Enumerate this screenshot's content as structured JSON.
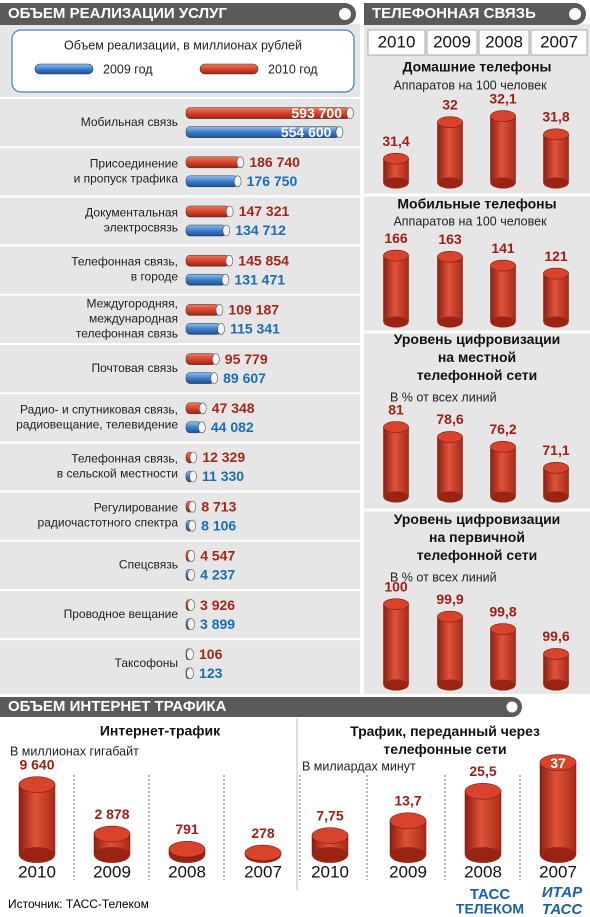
{
  "header_left": "ОБЪЕМ РЕАЛИЗАЦИИ УСЛУГ",
  "header_right": "ТЕЛЕФОННАЯ СВЯЗЬ",
  "header_bottom": "ОБЪЕМ ИНТЕРНЕТ ТРАФИКА",
  "telephone_years": [
    "2010",
    "2009",
    "2008",
    "2007"
  ],
  "source": "Источник: ТАСС-Телеком",
  "logo": {
    "tass_telecom": [
      "ТАСС",
      "ТЕЛЕКОМ"
    ],
    "itar_tass": [
      "ИТАР",
      "ТАСС"
    ]
  },
  "chart_data": [
    {
      "type": "hbar",
      "subtitle": "Объем реализации, в миллионах рублей",
      "categories": [
        "Мобильная связь",
        "Присоединение\nи пропуск трафика",
        "Документальная\nэлектросвязь",
        "Телефонная связь,\nв городе",
        "Междугородняя,\nмеждународная\nтелефонная связь",
        "Почтовая связь",
        "Радио- и спутниковая связь,\nрадиовещание, телевидение",
        "Телефонная связь,\nв сельской местности",
        "Регулирование\nрадиочастотного спектра",
        "Спецсвязь",
        "Проводное вещание",
        "Таксофоны"
      ],
      "series": [
        {
          "name": "2009 год",
          "color": "#3d7fcb",
          "label_color": "#1a6db3",
          "values": [
            554600,
            176750,
            134712,
            131471,
            115341,
            89607,
            44082,
            11330,
            8106,
            4237,
            3899,
            123
          ],
          "value_labels": [
            "554 600",
            "176 750",
            "134 712",
            "131 471",
            "115 341",
            "89 607",
            "44 082",
            "11 330",
            "8 106",
            "4 237",
            "3 899",
            "123"
          ]
        },
        {
          "name": "2010 год",
          "color": "#d9432c",
          "label_color": "#a3261c",
          "values": [
            593700,
            186740,
            147321,
            145854,
            109187,
            95779,
            47348,
            12329,
            8713,
            4547,
            3926,
            106
          ],
          "value_labels": [
            "593 700",
            "186 740",
            "147 321",
            "145 854",
            "109 187",
            "95 779",
            "47 348",
            "12 329",
            "8 713",
            "4 547",
            "3 926",
            "106"
          ]
        }
      ]
    },
    {
      "type": "column",
      "title": "Домашние телефоны",
      "subtitle": "Аппаратов на 100 человек",
      "values": [
        31.4,
        32,
        32.1,
        31.8
      ],
      "value_labels": [
        "31,4",
        "32",
        "32,1",
        "31,8"
      ],
      "color": "#d9432c",
      "ylim": [
        31,
        32.2
      ]
    },
    {
      "type": "column",
      "title": "Мобильные телефоны",
      "subtitle": "Аппаратов на 100 человек",
      "values": [
        166,
        163,
        141,
        121
      ],
      "value_labels": [
        "166",
        "163",
        "141",
        "121"
      ],
      "color": "#d9432c",
      "ylim": [
        0,
        170
      ]
    },
    {
      "type": "column",
      "title": "Уровень цифровизации\nна местной\nтелефонной сети",
      "subtitle": "В % от всех линий",
      "values": [
        81,
        78.6,
        76.2,
        71.1
      ],
      "value_labels": [
        "81",
        "78,6",
        "76,2",
        "71,1"
      ],
      "color": "#d9432c",
      "ylim": [
        64,
        82
      ]
    },
    {
      "type": "column",
      "title": "Уровень цифровизации\nна первичной\nтелефонной сети",
      "subtitle": "В % от всех линий",
      "values": [
        100,
        99.9,
        99.8,
        99.6
      ],
      "value_labels": [
        "100",
        "99,9",
        "99,8",
        "99,6"
      ],
      "color": "#d9432c",
      "ylim": [
        99.35,
        100.05
      ]
    },
    {
      "type": "column",
      "title": "Интернет-трафик",
      "subtitle": "В миллионах гигабайт",
      "categories": [
        "2010",
        "2009",
        "2008",
        "2007"
      ],
      "values": [
        9640,
        2878,
        791,
        278
      ],
      "value_labels": [
        "9 640",
        "2 878",
        "791",
        "278"
      ],
      "color": "#d9432c",
      "ylim": [
        0,
        10000
      ]
    },
    {
      "type": "column",
      "title": "Трафик, переданный через\nтелефонные сети",
      "subtitle": "В милиардах минут",
      "categories": [
        "2010",
        "2009",
        "2008",
        "2007"
      ],
      "values": [
        7.75,
        13.7,
        25.5,
        37
      ],
      "value_labels": [
        "7,75",
        "13,7",
        "25,5",
        "37"
      ],
      "color": "#d9432c",
      "ylim": [
        0,
        40
      ]
    }
  ]
}
